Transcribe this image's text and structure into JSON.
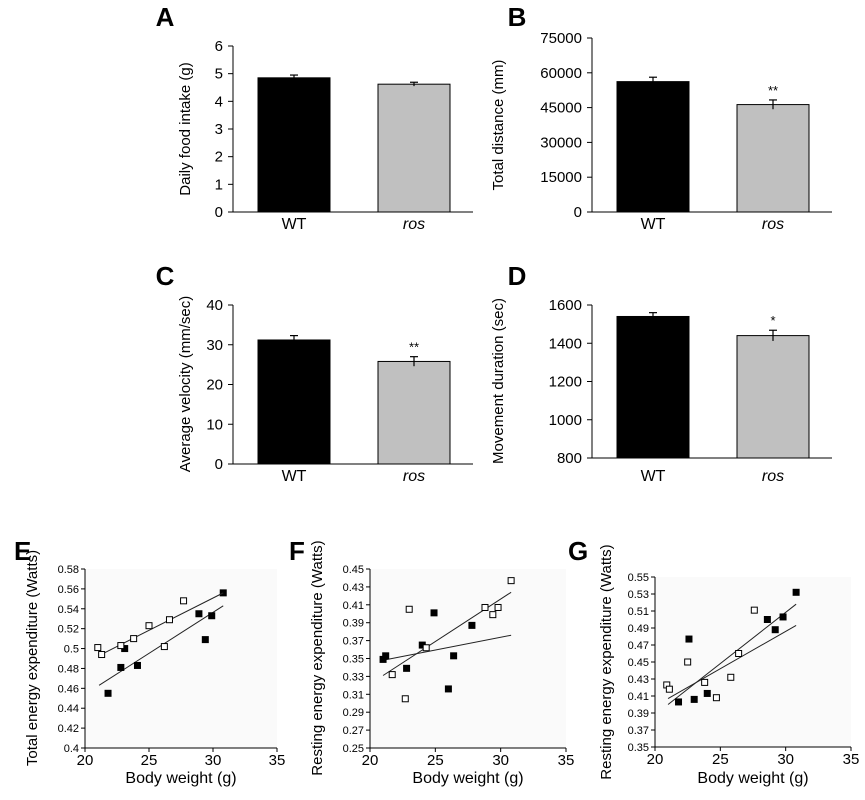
{
  "chart_data": [
    {
      "panel": "A",
      "type": "bar",
      "categories": [
        "WT",
        "ros"
      ],
      "values": [
        4.85,
        4.62
      ],
      "errors": [
        0.1,
        0.07
      ],
      "significance": [
        "",
        ""
      ],
      "ylabel": "Daily food intake (g)",
      "ylim": [
        0,
        6
      ],
      "yticks": [
        "0",
        "1",
        "2",
        "3",
        "4",
        "5",
        "6"
      ],
      "colors": [
        "#000000",
        "#c0c0c0"
      ]
    },
    {
      "panel": "B",
      "type": "bar",
      "categories": [
        "WT",
        "ros"
      ],
      "values": [
        56200,
        46300
      ],
      "errors": [
        1900,
        2000
      ],
      "significance": [
        "",
        "**"
      ],
      "ylabel": "Total distance (mm)",
      "ylim": [
        0,
        75000
      ],
      "yticks": [
        "0",
        "15000",
        "30000",
        "45000",
        "60000",
        "75000"
      ],
      "colors": [
        "#000000",
        "#c0c0c0"
      ]
    },
    {
      "panel": "C",
      "type": "bar",
      "categories": [
        "WT",
        "ros"
      ],
      "values": [
        31.2,
        25.8
      ],
      "errors": [
        1.1,
        1.2
      ],
      "significance": [
        "",
        "**"
      ],
      "ylabel": "Average velocity (mm/sec)",
      "ylim": [
        0,
        40
      ],
      "yticks": [
        "0",
        "10",
        "20",
        "30",
        "40"
      ],
      "colors": [
        "#000000",
        "#c0c0c0"
      ]
    },
    {
      "panel": "D",
      "type": "bar",
      "categories": [
        "WT",
        "ros"
      ],
      "values": [
        1540,
        1440
      ],
      "errors": [
        20,
        28
      ],
      "significance": [
        "",
        "*"
      ],
      "ylabel": "Movement duration (sec)",
      "ylim": [
        800,
        1600
      ],
      "yticks": [
        "800",
        "1000",
        "1200",
        "1400",
        "1600"
      ],
      "colors": [
        "#000000",
        "#c0c0c0"
      ]
    },
    {
      "panel": "E",
      "type": "scatter",
      "xlabel": "Body weight (g)",
      "ylabel": "Total energy expenditure (Watts)",
      "xlim": [
        20,
        35
      ],
      "ylim": [
        0.4,
        0.58
      ],
      "xticks": [
        "20",
        "25",
        "30",
        "35"
      ],
      "yticks": [
        "0.4",
        "0.42",
        "0.44",
        "0.46",
        "0.48",
        "0.5",
        "0.52",
        "0.54",
        "0.56",
        "0.58"
      ],
      "series": [
        {
          "marker": "filled-square",
          "x": [
            21.8,
            22.8,
            23.1,
            24.1,
            28.9,
            29.4,
            29.9,
            30.8
          ],
          "y": [
            0.455,
            0.481,
            0.5,
            0.483,
            0.535,
            0.509,
            0.533,
            0.556
          ],
          "fit": [
            [
              21.1,
              0.463
            ],
            [
              30.8,
              0.543
            ]
          ]
        },
        {
          "marker": "open-square",
          "x": [
            21.0,
            21.3,
            22.8,
            23.8,
            25.0,
            26.2,
            26.6,
            27.7
          ],
          "y": [
            0.501,
            0.494,
            0.503,
            0.51,
            0.523,
            0.502,
            0.529,
            0.548
          ],
          "fit": [
            [
              21.1,
              0.493
            ],
            [
              30.8,
              0.556
            ]
          ]
        }
      ]
    },
    {
      "panel": "F",
      "type": "scatter",
      "xlabel": "Body weight (g)",
      "ylabel": "Resting energy expenditure (Watts)",
      "xlim": [
        20,
        35
      ],
      "ylim": [
        0.25,
        0.45
      ],
      "xticks": [
        "20",
        "25",
        "30",
        "35"
      ],
      "yticks": [
        "0.25",
        "0.27",
        "0.29",
        "0.31",
        "0.33",
        "0.35",
        "0.37",
        "0.39",
        "0.41",
        "0.43",
        "0.45"
      ],
      "series": [
        {
          "marker": "filled-square",
          "x": [
            21.0,
            21.2,
            22.8,
            24.0,
            24.9,
            26.0,
            26.4,
            27.8
          ],
          "y": [
            0.349,
            0.353,
            0.339,
            0.365,
            0.401,
            0.316,
            0.353,
            0.387
          ],
          "fit": [
            [
              21.0,
              0.348
            ],
            [
              30.8,
              0.376
            ]
          ]
        },
        {
          "marker": "open-square",
          "x": [
            21.7,
            22.7,
            23.0,
            24.3,
            28.8,
            29.4,
            29.8,
            30.8
          ],
          "y": [
            0.332,
            0.305,
            0.405,
            0.362,
            0.407,
            0.399,
            0.407,
            0.437
          ],
          "fit": [
            [
              21.0,
              0.331
            ],
            [
              30.8,
              0.424
            ]
          ]
        }
      ]
    },
    {
      "panel": "G",
      "type": "scatter",
      "xlabel": "Body weight (g)",
      "ylabel": "Resting energy expenditure (Watts)",
      "xlim": [
        20,
        35
      ],
      "ylim": [
        0.35,
        0.55
      ],
      "xticks": [
        "20",
        "25",
        "30",
        "35"
      ],
      "yticks": [
        "0.35",
        "0.37",
        "0.39",
        "0.41",
        "0.43",
        "0.45",
        "0.47",
        "0.49",
        "0.51",
        "0.53",
        "0.55"
      ],
      "series": [
        {
          "marker": "filled-square",
          "x": [
            21.8,
            22.6,
            23.0,
            24.0,
            28.6,
            29.2,
            29.8,
            30.8
          ],
          "y": [
            0.403,
            0.477,
            0.406,
            0.413,
            0.5,
            0.488,
            0.503,
            0.532
          ],
          "fit": [
            [
              21.0,
              0.4
            ],
            [
              30.8,
              0.518
            ]
          ]
        },
        {
          "marker": "open-square",
          "x": [
            20.9,
            21.1,
            22.5,
            23.8,
            24.7,
            25.8,
            26.4,
            27.6
          ],
          "y": [
            0.423,
            0.418,
            0.45,
            0.426,
            0.408,
            0.432,
            0.46,
            0.511
          ],
          "fit": [
            [
              21.0,
              0.407
            ],
            [
              30.8,
              0.493
            ]
          ]
        }
      ]
    }
  ]
}
